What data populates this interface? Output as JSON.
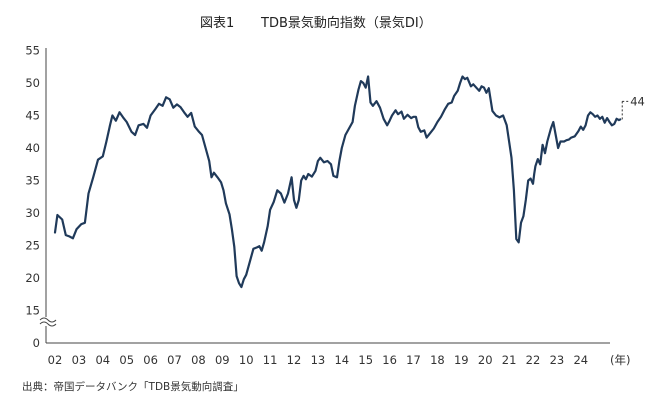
{
  "chart_data": {
    "type": "line",
    "title_left": "図表1",
    "title_right": "TDB景気動向指数（景気DI）",
    "source": "出典：帝国データバンク「TDB景気動向調査」",
    "x_unit_label": "(年)",
    "x_tick_labels": [
      "02",
      "03",
      "04",
      "05",
      "06",
      "07",
      "08",
      "09",
      "10",
      "11",
      "12",
      "13",
      "14",
      "15",
      "16",
      "17",
      "18",
      "19",
      "20",
      "21",
      "22",
      "23",
      "24"
    ],
    "y_tick_labels": [
      "0",
      "15",
      "20",
      "25",
      "30",
      "35",
      "40",
      "45",
      "50",
      "55"
    ],
    "ylim": [
      15,
      55
    ],
    "axis_break": true,
    "grid": false,
    "line_color": "#203a5a",
    "end_label": "44.4",
    "series": [
      {
        "values": [
          [
            2002.0,
            27.0
          ],
          [
            2002.1,
            29.7
          ],
          [
            2002.3,
            29.0
          ],
          [
            2002.45,
            26.6
          ],
          [
            2002.6,
            26.4
          ],
          [
            2002.75,
            26.1
          ],
          [
            2002.9,
            27.5
          ],
          [
            2003.1,
            28.3
          ],
          [
            2003.25,
            28.5
          ],
          [
            2003.4,
            33.0
          ],
          [
            2003.6,
            35.5
          ],
          [
            2003.8,
            38.2
          ],
          [
            2004.0,
            38.7
          ],
          [
            2004.15,
            41.0
          ],
          [
            2004.3,
            43.5
          ],
          [
            2004.4,
            45.0
          ],
          [
            2004.55,
            44.2
          ],
          [
            2004.7,
            45.5
          ],
          [
            2004.85,
            44.7
          ],
          [
            2005.0,
            44.0
          ],
          [
            2005.2,
            42.5
          ],
          [
            2005.35,
            42.0
          ],
          [
            2005.5,
            43.5
          ],
          [
            2005.7,
            43.7
          ],
          [
            2005.85,
            43.1
          ],
          [
            2006.0,
            45.0
          ],
          [
            2006.2,
            46.0
          ],
          [
            2006.35,
            46.8
          ],
          [
            2006.5,
            46.5
          ],
          [
            2006.65,
            47.8
          ],
          [
            2006.8,
            47.5
          ],
          [
            2006.95,
            46.2
          ],
          [
            2007.1,
            46.7
          ],
          [
            2007.25,
            46.3
          ],
          [
            2007.4,
            45.5
          ],
          [
            2007.55,
            44.8
          ],
          [
            2007.7,
            45.4
          ],
          [
            2007.85,
            43.3
          ],
          [
            2008.0,
            42.6
          ],
          [
            2008.15,
            42.0
          ],
          [
            2008.3,
            40.0
          ],
          [
            2008.45,
            38.0
          ],
          [
            2008.55,
            35.5
          ],
          [
            2008.65,
            36.2
          ],
          [
            2008.8,
            35.5
          ],
          [
            2008.95,
            34.7
          ],
          [
            2009.05,
            33.5
          ],
          [
            2009.15,
            31.5
          ],
          [
            2009.3,
            29.8
          ],
          [
            2009.4,
            27.5
          ],
          [
            2009.5,
            24.8
          ],
          [
            2009.6,
            20.3
          ],
          [
            2009.7,
            19.2
          ],
          [
            2009.8,
            18.6
          ],
          [
            2009.9,
            19.8
          ],
          [
            2010.0,
            20.5
          ],
          [
            2010.15,
            22.5
          ],
          [
            2010.3,
            24.5
          ],
          [
            2010.45,
            24.7
          ],
          [
            2010.55,
            24.9
          ],
          [
            2010.65,
            24.2
          ],
          [
            2010.75,
            25.5
          ],
          [
            2010.9,
            28.0
          ],
          [
            2011.0,
            30.5
          ],
          [
            2011.15,
            31.7
          ],
          [
            2011.3,
            33.5
          ],
          [
            2011.45,
            33.0
          ],
          [
            2011.6,
            31.6
          ],
          [
            2011.75,
            33.0
          ],
          [
            2011.9,
            35.5
          ],
          [
            2012.0,
            32.0
          ],
          [
            2012.1,
            30.8
          ],
          [
            2012.2,
            32.0
          ],
          [
            2012.3,
            35.0
          ],
          [
            2012.4,
            35.7
          ],
          [
            2012.5,
            35.2
          ],
          [
            2012.6,
            36.0
          ],
          [
            2012.75,
            35.6
          ],
          [
            2012.9,
            36.5
          ],
          [
            2013.0,
            38.0
          ],
          [
            2013.1,
            38.5
          ],
          [
            2013.25,
            37.8
          ],
          [
            2013.4,
            38.0
          ],
          [
            2013.55,
            37.5
          ],
          [
            2013.65,
            35.7
          ],
          [
            2013.8,
            35.5
          ],
          [
            2013.9,
            38.0
          ],
          [
            2014.0,
            40.0
          ],
          [
            2014.15,
            42.0
          ],
          [
            2014.3,
            43.0
          ],
          [
            2014.45,
            44.0
          ],
          [
            2014.55,
            46.5
          ],
          [
            2014.7,
            49.0
          ],
          [
            2014.8,
            50.3
          ],
          [
            2014.9,
            50.0
          ],
          [
            2015.0,
            49.3
          ],
          [
            2015.1,
            51.0
          ],
          [
            2015.2,
            47.0
          ],
          [
            2015.3,
            46.5
          ],
          [
            2015.45,
            47.2
          ],
          [
            2015.6,
            46.2
          ],
          [
            2015.75,
            44.5
          ],
          [
            2015.9,
            43.5
          ],
          [
            2016.0,
            44.2
          ],
          [
            2016.1,
            45.0
          ],
          [
            2016.25,
            45.8
          ],
          [
            2016.35,
            45.2
          ],
          [
            2016.5,
            45.6
          ],
          [
            2016.6,
            44.5
          ],
          [
            2016.75,
            45.1
          ],
          [
            2016.9,
            44.6
          ],
          [
            2017.0,
            44.8
          ],
          [
            2017.1,
            44.8
          ],
          [
            2017.2,
            43.2
          ],
          [
            2017.3,
            42.5
          ],
          [
            2017.45,
            42.7
          ],
          [
            2017.55,
            41.6
          ],
          [
            2017.7,
            42.3
          ],
          [
            2017.85,
            43.0
          ],
          [
            2018.0,
            44.0
          ],
          [
            2018.15,
            44.8
          ],
          [
            2018.3,
            45.9
          ],
          [
            2018.45,
            46.8
          ],
          [
            2018.6,
            47.0
          ],
          [
            2018.7,
            48.0
          ],
          [
            2018.85,
            48.8
          ],
          [
            2018.95,
            50.0
          ],
          [
            2019.05,
            51.0
          ],
          [
            2019.15,
            50.6
          ],
          [
            2019.25,
            50.8
          ],
          [
            2019.4,
            49.5
          ],
          [
            2019.5,
            49.8
          ],
          [
            2019.65,
            49.2
          ],
          [
            2019.75,
            48.8
          ],
          [
            2019.85,
            49.5
          ],
          [
            2019.95,
            49.3
          ],
          [
            2020.05,
            48.5
          ],
          [
            2020.15,
            49.2
          ],
          [
            2020.3,
            45.7
          ],
          [
            2020.45,
            45.0
          ],
          [
            2020.6,
            44.7
          ],
          [
            2020.75,
            45.0
          ],
          [
            2020.9,
            43.5
          ],
          [
            2021.0,
            41.0
          ],
          [
            2021.1,
            38.5
          ],
          [
            2021.2,
            33.5
          ],
          [
            2021.3,
            26.0
          ],
          [
            2021.4,
            25.5
          ],
          [
            2021.5,
            28.5
          ],
          [
            2021.6,
            29.5
          ],
          [
            2021.7,
            32.0
          ],
          [
            2021.8,
            35.0
          ],
          [
            2021.9,
            35.3
          ],
          [
            2022.0,
            34.5
          ],
          [
            2022.05,
            36.0
          ],
          [
            2022.1,
            37.2
          ],
          [
            2022.2,
            38.3
          ],
          [
            2022.3,
            37.5
          ],
          [
            2022.4,
            40.5
          ],
          [
            2022.5,
            39.2
          ],
          [
            2022.6,
            41.0
          ],
          [
            2022.75,
            43.0
          ],
          [
            2022.85,
            44.0
          ],
          [
            2022.95,
            42.0
          ],
          [
            2023.05,
            40.0
          ],
          [
            2023.15,
            41.0
          ],
          [
            2023.3,
            41.0
          ],
          [
            2023.4,
            41.2
          ],
          [
            2023.5,
            41.3
          ],
          [
            2023.6,
            41.6
          ],
          [
            2023.75,
            41.8
          ],
          [
            2023.9,
            42.6
          ],
          [
            2024.0,
            43.3
          ],
          [
            2024.1,
            42.8
          ],
          [
            2024.2,
            43.5
          ],
          [
            2024.3,
            45.0
          ],
          [
            2024.4,
            45.5
          ],
          [
            2024.5,
            45.2
          ],
          [
            2024.6,
            44.8
          ],
          [
            2024.7,
            45.0
          ],
          [
            2024.8,
            44.5
          ],
          [
            2024.9,
            44.8
          ],
          [
            2025.0,
            43.9
          ],
          [
            2025.1,
            44.6
          ],
          [
            2025.2,
            44.0
          ],
          [
            2025.3,
            43.5
          ],
          [
            2025.4,
            43.7
          ],
          [
            2025.5,
            44.5
          ],
          [
            2025.6,
            44.3
          ],
          [
            2025.65,
            44.4
          ]
        ]
      }
    ]
  }
}
